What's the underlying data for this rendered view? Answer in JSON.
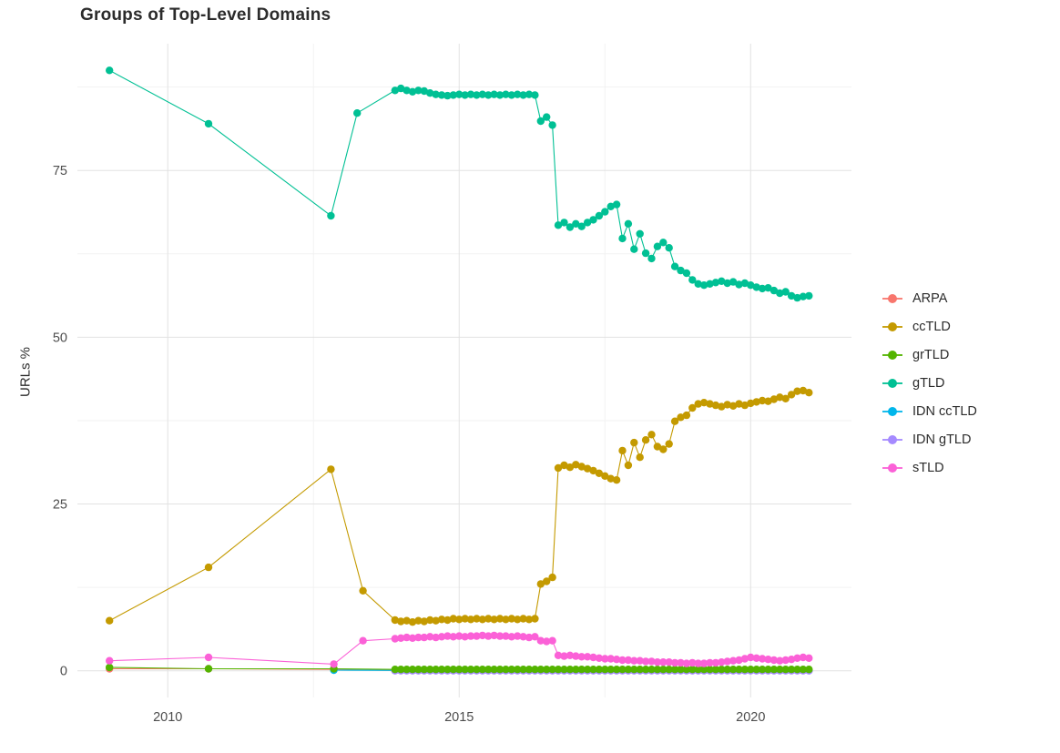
{
  "title": "Groups of Top-Level Domains",
  "ylabel": "URLs %",
  "chart_data": {
    "type": "scatter",
    "title": "Groups of Top-Level Domains",
    "xlabel": "",
    "ylabel": "URLs %",
    "grid": true,
    "legend_position": "right",
    "xlim": [
      2008.45,
      2021.73
    ],
    "ylim": [
      -4,
      94
    ],
    "x_ticks": [
      2010,
      2015,
      2020
    ],
    "x_tick_labels": [
      "2010",
      "2015",
      "2020"
    ],
    "y_ticks": [
      0,
      25,
      50,
      75
    ],
    "y_tick_labels": [
      "0",
      "25",
      "50",
      "75"
    ],
    "x_minor": [
      2012.5,
      2017.5
    ],
    "y_minor": [
      12.5,
      37.5,
      62.5,
      87.5
    ],
    "colors": {
      "grid_major": "#e2e2e2",
      "grid_minor": "#f2f2f2",
      "tick_text": "#4d4d4d"
    },
    "draw_order": [
      "ARPA",
      "IDN ccTLD",
      "IDN gTLD",
      "grTLD",
      "ccTLD",
      "gTLD",
      "sTLD"
    ],
    "x_dense": [
      2013.9,
      2014.0,
      2014.1,
      2014.2,
      2014.3,
      2014.4,
      2014.5,
      2014.6,
      2014.7,
      2014.8,
      2014.9,
      2015.0,
      2015.1,
      2015.2,
      2015.3,
      2015.4,
      2015.5,
      2015.6,
      2015.7,
      2015.8,
      2015.9,
      2016.0,
      2016.1,
      2016.2,
      2016.3,
      2016.4,
      2016.5,
      2016.6,
      2016.7,
      2016.8,
      2016.9,
      2017.0,
      2017.1,
      2017.2,
      2017.3,
      2017.4,
      2017.5,
      2017.6,
      2017.7,
      2017.8,
      2017.9,
      2018.0,
      2018.1,
      2018.2,
      2018.3,
      2018.4,
      2018.5,
      2018.6,
      2018.7,
      2018.8,
      2018.9,
      2019.0,
      2019.1,
      2019.2,
      2019.3,
      2019.4,
      2019.5,
      2019.6,
      2019.7,
      2019.8,
      2019.9,
      2020.0,
      2020.1,
      2020.2,
      2020.3,
      2020.4,
      2020.5,
      2020.6,
      2020.7,
      2020.8,
      2020.9,
      2021.0
    ],
    "series": [
      {
        "name": "ARPA",
        "color": "#F8766D",
        "x_pre": [
          2009.0,
          2010.7,
          2012.85
        ],
        "y_pre": [
          0.3,
          0.3,
          0.2
        ],
        "y_dense_const": 0.05
      },
      {
        "name": "ccTLD",
        "color": "#C49A00",
        "x_pre": [
          2009.0,
          2010.7,
          2012.8,
          2013.35
        ],
        "y_pre": [
          7.5,
          15.5,
          30.2,
          12.0
        ],
        "y_dense": [
          7.6,
          7.4,
          7.5,
          7.3,
          7.5,
          7.4,
          7.6,
          7.5,
          7.7,
          7.6,
          7.8,
          7.7,
          7.8,
          7.7,
          7.8,
          7.7,
          7.8,
          7.7,
          7.8,
          7.7,
          7.8,
          7.7,
          7.8,
          7.7,
          7.8,
          13.0,
          13.4,
          14.0,
          30.4,
          30.8,
          30.5,
          30.9,
          30.6,
          30.3,
          30.0,
          29.6,
          29.2,
          28.8,
          28.6,
          33.0,
          30.8,
          34.2,
          32.0,
          34.6,
          35.4,
          33.6,
          33.2,
          34.0,
          37.4,
          38.0,
          38.3,
          39.4,
          40.0,
          40.2,
          40.0,
          39.8,
          39.6,
          39.9,
          39.7,
          40.0,
          39.8,
          40.1,
          40.3,
          40.5,
          40.4,
          40.7,
          41.0,
          40.8,
          41.4,
          41.9,
          42.0,
          41.7
        ]
      },
      {
        "name": "grTLD",
        "color": "#53B400",
        "x_pre": [
          2009.0,
          2010.7,
          2012.85
        ],
        "y_pre": [
          0.5,
          0.3,
          0.3
        ],
        "y_dense_const": 0.2
      },
      {
        "name": "gTLD",
        "color": "#00C094",
        "x_pre": [
          2009.0,
          2010.7,
          2012.8,
          2013.25
        ],
        "y_pre": [
          90.0,
          82.0,
          68.2,
          83.6
        ],
        "y_dense": [
          87.0,
          87.3,
          87.0,
          86.8,
          87.0,
          86.9,
          86.6,
          86.4,
          86.3,
          86.2,
          86.3,
          86.4,
          86.3,
          86.4,
          86.3,
          86.4,
          86.3,
          86.4,
          86.3,
          86.4,
          86.3,
          86.4,
          86.3,
          86.4,
          86.3,
          82.4,
          83.0,
          81.8,
          66.8,
          67.2,
          66.5,
          67.0,
          66.6,
          67.2,
          67.6,
          68.2,
          68.8,
          69.6,
          69.9,
          64.8,
          67.0,
          63.2,
          65.5,
          62.6,
          61.8,
          63.6,
          64.2,
          63.4,
          60.6,
          60.0,
          59.6,
          58.6,
          58.0,
          57.8,
          58.0,
          58.2,
          58.4,
          58.1,
          58.3,
          57.9,
          58.1,
          57.8,
          57.5,
          57.3,
          57.4,
          57.0,
          56.6,
          56.8,
          56.2,
          55.9,
          56.1,
          56.2
        ]
      },
      {
        "name": "IDN ccTLD",
        "color": "#00B6EB",
        "x_pre": [
          2012.85
        ],
        "y_pre": [
          0.1
        ],
        "y_dense_const": 0.05
      },
      {
        "name": "IDN gTLD",
        "color": "#A58AFF",
        "x_pre": [],
        "y_pre": [],
        "y_dense_const": 0.0
      },
      {
        "name": "sTLD",
        "color": "#FB61D7",
        "x_pre": [
          2009.0,
          2010.7,
          2012.85,
          2013.35
        ],
        "y_pre": [
          1.5,
          2.0,
          1.0,
          4.5
        ],
        "y_dense": [
          4.8,
          4.9,
          5.0,
          4.9,
          5.0,
          5.0,
          5.1,
          5.0,
          5.1,
          5.2,
          5.1,
          5.2,
          5.1,
          5.2,
          5.2,
          5.3,
          5.2,
          5.3,
          5.2,
          5.2,
          5.1,
          5.2,
          5.1,
          5.0,
          5.1,
          4.5,
          4.4,
          4.5,
          2.3,
          2.2,
          2.3,
          2.2,
          2.1,
          2.1,
          2.0,
          1.9,
          1.8,
          1.8,
          1.7,
          1.6,
          1.6,
          1.5,
          1.5,
          1.4,
          1.4,
          1.3,
          1.3,
          1.3,
          1.2,
          1.2,
          1.1,
          1.2,
          1.1,
          1.1,
          1.2,
          1.2,
          1.3,
          1.4,
          1.5,
          1.6,
          1.8,
          2.0,
          1.9,
          1.8,
          1.7,
          1.6,
          1.5,
          1.6,
          1.7,
          1.9,
          2.0,
          1.9
        ]
      }
    ]
  }
}
